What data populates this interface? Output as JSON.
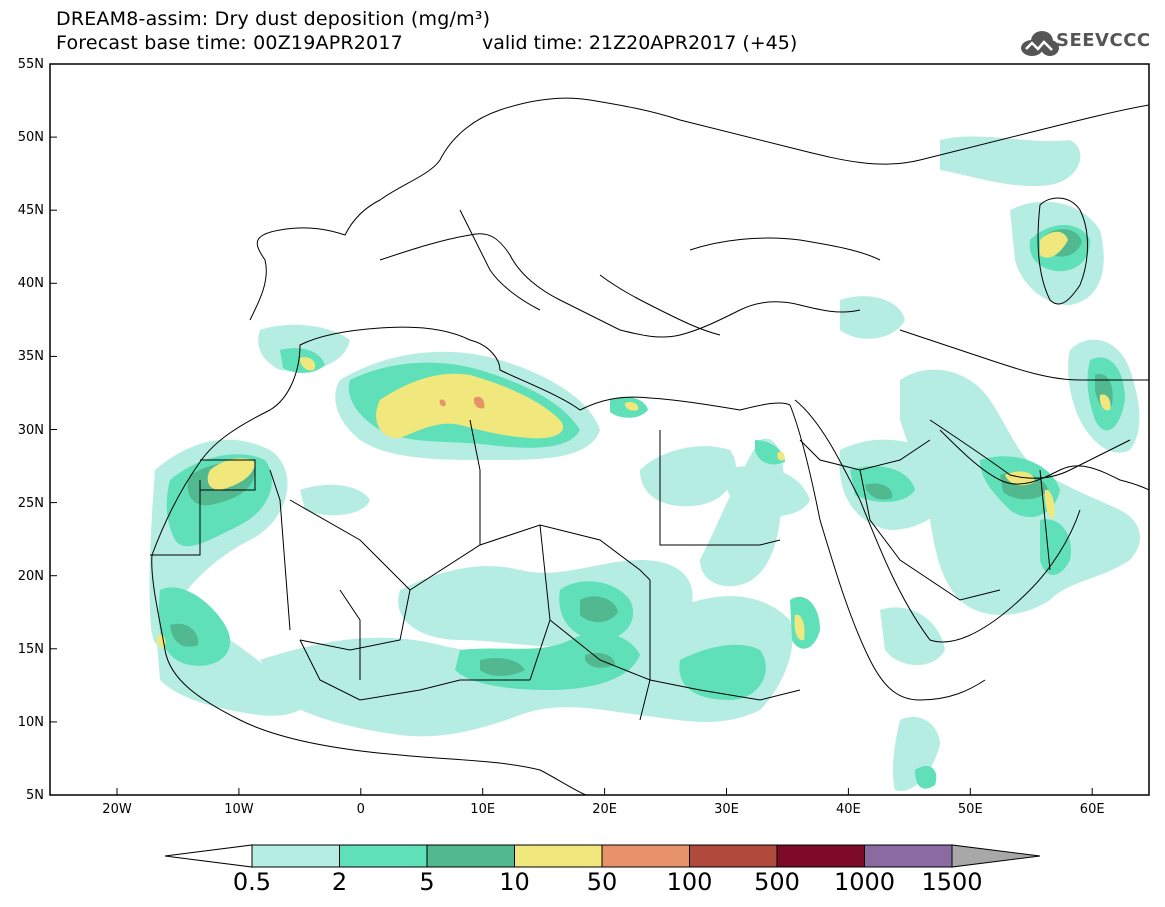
{
  "header": {
    "line1": "DREAM8-assim: Dry dust deposition (mg/m³)",
    "line2": "Forecast base time: 00Z19APR2017",
    "valid": "valid time: 21Z20APR2017 (+45)"
  },
  "logo": {
    "text": "SEEVCCC",
    "icon": "cloud-icon"
  },
  "axes": {
    "lat_labels": [
      "55N",
      "50N",
      "45N",
      "40N",
      "35N",
      "30N",
      "25N",
      "20N",
      "15N",
      "10N",
      "5N"
    ],
    "lon_labels": [
      "20W",
      "10W",
      "0",
      "10E",
      "20E",
      "30E",
      "40E",
      "50E",
      "60E"
    ]
  },
  "legend": {
    "labels": [
      "0.5",
      "2",
      "5",
      "10",
      "50",
      "100",
      "500",
      "1000",
      "1500"
    ],
    "colors": [
      "#b6ede3",
      "#5fe0b8",
      "#52b890",
      "#f0e87c",
      "#e8926a",
      "#b04a3c",
      "#7d0a26",
      "#8a6aa0"
    ],
    "low_arrow_color": "#ffffff",
    "high_arrow_color": "#a8a8a8"
  }
}
